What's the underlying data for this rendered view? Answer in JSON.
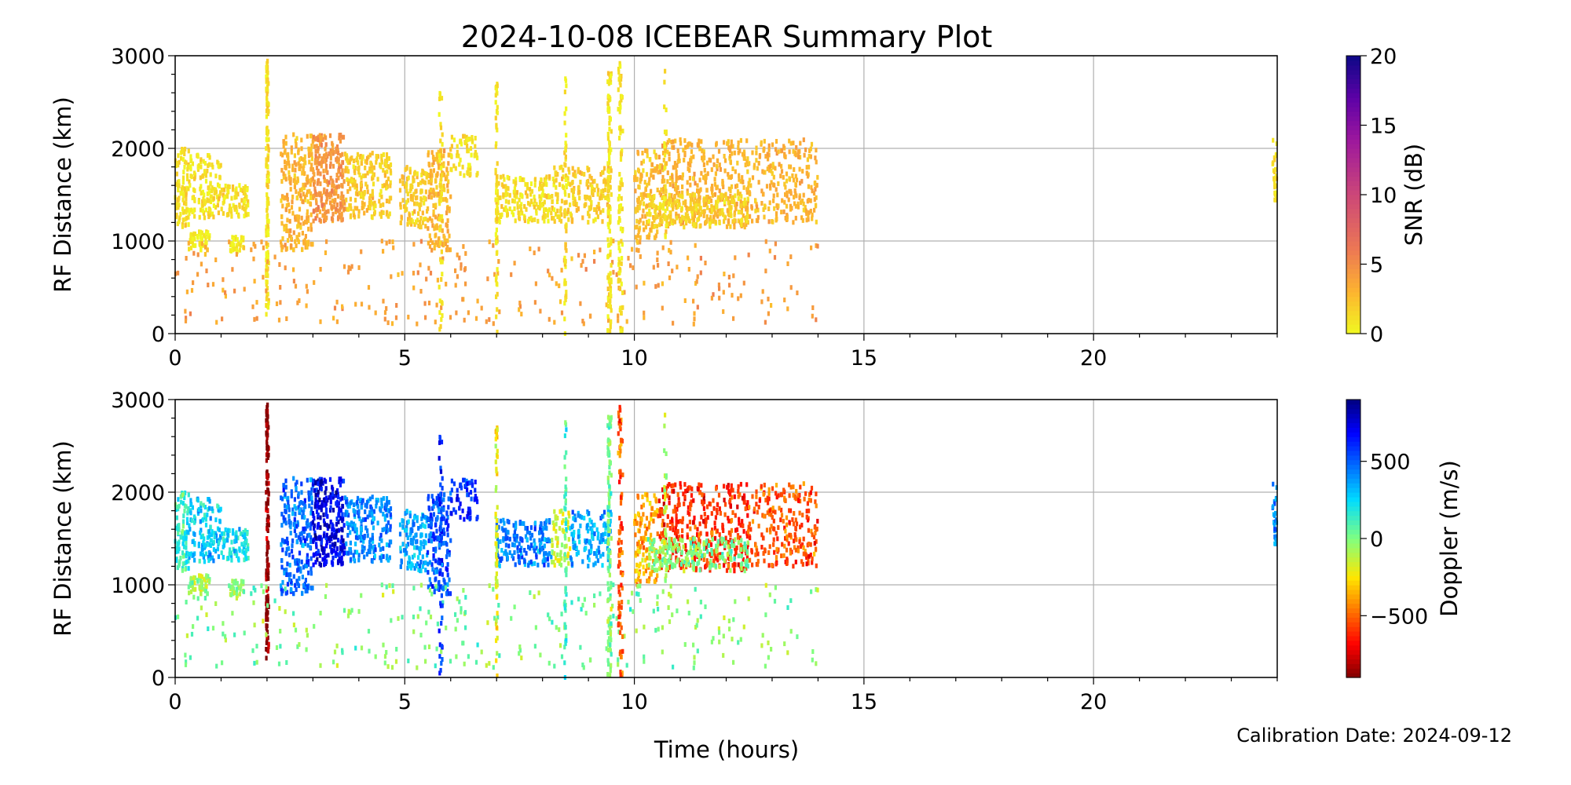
{
  "chart_data": {
    "title": "2024-10-08 ICEBEAR Summary Plot",
    "footnote": "Calibration Date: 2024-09-12",
    "xlabel": "Time (hours)",
    "xlim": [
      0,
      24
    ],
    "xticks": [
      "0",
      "5",
      "10",
      "15",
      "20"
    ],
    "panels": [
      {
        "type": "scatter",
        "ylabel": "RF Distance (km)",
        "ylim": [
          0,
          3000
        ],
        "yticks": [
          "0",
          "1000",
          "2000",
          "3000"
        ],
        "grid": true,
        "color_by": "snr",
        "colorbar": {
          "label": "SNR (dB)",
          "range": [
            0,
            20
          ],
          "ticks": [
            "0",
            "5",
            "10",
            "15",
            "20"
          ],
          "colormap": "plasma_r"
        }
      },
      {
        "type": "scatter",
        "ylabel": "RF Distance (km)",
        "ylim": [
          0,
          3000
        ],
        "yticks": [
          "0",
          "1000",
          "2000",
          "3000"
        ],
        "grid": true,
        "color_by": "doppler",
        "colorbar": {
          "label": "Doppler (m/s)",
          "range": [
            -900,
            900
          ],
          "ticks": [
            "−500",
            "0",
            "500"
          ],
          "tick_values": [
            -500,
            0,
            500
          ],
          "colormap": "jet_r"
        }
      }
    ],
    "clusters": [
      {
        "t": [
          0.0,
          0.3
        ],
        "r": [
          1150,
          2000
        ],
        "snr": 1,
        "doppler": 150,
        "n": 90
      },
      {
        "t": [
          0.3,
          1.0
        ],
        "r": [
          1250,
          1950
        ],
        "snr": 1,
        "doppler": 280,
        "n": 130
      },
      {
        "t": [
          0.3,
          0.8
        ],
        "r": [
          900,
          1100
        ],
        "snr": 0.5,
        "doppler": -80,
        "n": 50
      },
      {
        "t": [
          1.0,
          1.6
        ],
        "r": [
          1250,
          1600
        ],
        "snr": 1,
        "doppler": 200,
        "n": 80
      },
      {
        "t": [
          1.2,
          1.5
        ],
        "r": [
          880,
          1060
        ],
        "snr": 0.5,
        "doppler": -50,
        "n": 30
      },
      {
        "t": [
          1.98,
          2.04
        ],
        "r": [
          200,
          2950
        ],
        "snr": 1,
        "doppler": -880,
        "n": 140
      },
      {
        "t": [
          2.3,
          3.0
        ],
        "r": [
          900,
          2150
        ],
        "snr": 3,
        "doppler": 480,
        "n": 220
      },
      {
        "t": [
          3.0,
          3.7
        ],
        "r": [
          1200,
          2150
        ],
        "snr": 4.5,
        "doppler": 720,
        "n": 240
      },
      {
        "t": [
          3.7,
          4.7
        ],
        "r": [
          1250,
          1950
        ],
        "snr": 2,
        "doppler": 420,
        "n": 200
      },
      {
        "t": [
          4.9,
          5.5
        ],
        "r": [
          1150,
          1800
        ],
        "snr": 2,
        "doppler": 350,
        "n": 110
      },
      {
        "t": [
          5.5,
          6.0
        ],
        "r": [
          900,
          2000
        ],
        "snr": 3,
        "doppler": 520,
        "n": 150
      },
      {
        "t": [
          6.0,
          6.6
        ],
        "r": [
          1700,
          2150
        ],
        "snr": 1,
        "doppler": 620,
        "n": 60
      },
      {
        "t": [
          7.0,
          8.2
        ],
        "r": [
          1200,
          1700
        ],
        "snr": 1,
        "doppler": 450,
        "n": 170
      },
      {
        "t": [
          8.2,
          8.6
        ],
        "r": [
          1200,
          1800
        ],
        "snr": 1.5,
        "doppler": -150,
        "n": 60
      },
      {
        "t": [
          8.6,
          9.5
        ],
        "r": [
          1200,
          1800
        ],
        "snr": 2,
        "doppler": 350,
        "n": 130
      },
      {
        "t": [
          10.0,
          10.5
        ],
        "r": [
          1000,
          2000
        ],
        "snr": 2.5,
        "doppler": -350,
        "n": 120
      },
      {
        "t": [
          10.5,
          12.5
        ],
        "r": [
          1150,
          2100
        ],
        "snr": 3,
        "doppler": -600,
        "n": 380
      },
      {
        "t": [
          10.3,
          12.5
        ],
        "r": [
          1150,
          1500
        ],
        "snr": 1.5,
        "doppler": 0,
        "n": 200
      },
      {
        "t": [
          12.5,
          14.0
        ],
        "r": [
          1200,
          2100
        ],
        "snr": 3,
        "doppler": -520,
        "n": 230
      },
      {
        "t": [
          23.9,
          24.0
        ],
        "r": [
          1400,
          2100
        ],
        "snr": 1,
        "doppler": 400,
        "n": 30
      },
      {
        "t": [
          0.0,
          14.0
        ],
        "r": [
          100,
          1000
        ],
        "snr": 4,
        "doppler": 0,
        "n": 300
      },
      {
        "t": [
          5.75,
          5.82
        ],
        "r": [
          0,
          2700
        ],
        "snr": 1,
        "doppler": 600,
        "n": 50
      },
      {
        "t": [
          6.98,
          7.02
        ],
        "r": [
          0,
          2950
        ],
        "snr": 1,
        "doppler": -200,
        "n": 60
      },
      {
        "t": [
          8.48,
          8.52
        ],
        "r": [
          0,
          2850
        ],
        "snr": 1,
        "doppler": 100,
        "n": 50
      },
      {
        "t": [
          9.42,
          9.5
        ],
        "r": [
          0,
          2900
        ],
        "snr": 1,
        "doppler": 0,
        "n": 110
      },
      {
        "t": [
          9.65,
          9.75
        ],
        "r": [
          0,
          2950
        ],
        "snr": 1,
        "doppler": -500,
        "n": 90
      },
      {
        "t": [
          10.65,
          10.7
        ],
        "r": [
          1000,
          2900
        ],
        "snr": 1,
        "doppler": -100,
        "n": 30
      }
    ]
  }
}
